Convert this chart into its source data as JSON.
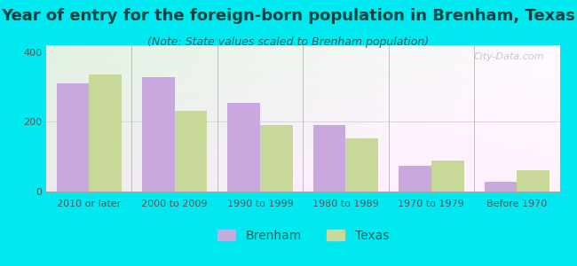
{
  "title": "Year of entry for the foreign-born population in Brenham, Texas",
  "subtitle": "(Note: State values scaled to Brenham population)",
  "categories": [
    "2010 or later",
    "2000 to 2009",
    "1990 to 1999",
    "1980 to 1989",
    "1970 to 1979",
    "Before 1970"
  ],
  "brenham_values": [
    310,
    328,
    255,
    192,
    75,
    28
  ],
  "texas_values": [
    335,
    232,
    192,
    152,
    90,
    62
  ],
  "brenham_color": "#c9a8e0",
  "texas_color": "#c8d898",
  "background_outer": "#00e8f0",
  "ylim": [
    0,
    420
  ],
  "yticks": [
    0,
    200,
    400
  ],
  "title_fontsize": 13,
  "subtitle_fontsize": 9,
  "tick_fontsize": 8,
  "legend_fontsize": 10,
  "bar_width": 0.38,
  "watermark": "City-Data.com"
}
